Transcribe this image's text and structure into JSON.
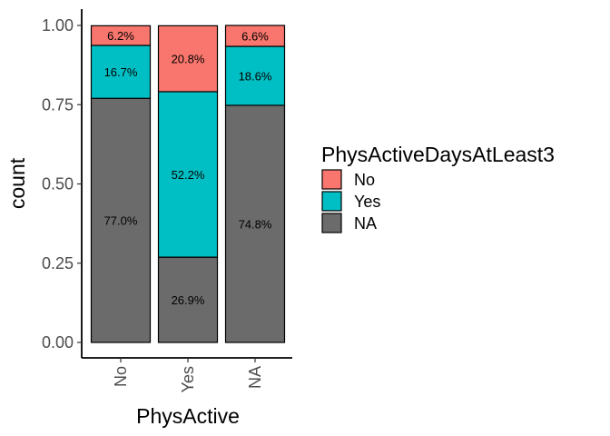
{
  "chart_data": {
    "type": "bar",
    "stacked": true,
    "categories": [
      "No",
      "Yes",
      "NA"
    ],
    "series": [
      {
        "name": "No",
        "color": "#F8766D",
        "values": [
          0.062,
          0.208,
          0.066
        ],
        "labels": [
          "6.2%",
          "20.8%",
          "6.6%"
        ]
      },
      {
        "name": "Yes",
        "color": "#00BFC4",
        "values": [
          0.167,
          0.522,
          0.186
        ],
        "labels": [
          "16.7%",
          "52.2%",
          "18.6%"
        ]
      },
      {
        "name": "NA",
        "color": "#6B6B6B",
        "values": [
          0.77,
          0.269,
          0.748
        ],
        "labels": [
          "77.0%",
          "26.9%",
          "74.8%"
        ]
      }
    ],
    "stack_order_top_to_bottom": [
      "No",
      "Yes",
      "NA"
    ],
    "xlabel": "PhysActive",
    "ylabel": "count",
    "ylim": [
      0,
      1
    ],
    "yticks": [
      0.0,
      0.25,
      0.5,
      0.75,
      1.0
    ],
    "ytick_labels": [
      "0.00",
      "0.25",
      "0.50",
      "0.75",
      "1.00"
    ],
    "legend": {
      "title": "PhysActiveDaysAtLeast3",
      "placement": "right",
      "entries": [
        "No",
        "Yes",
        "NA"
      ]
    },
    "grid": false
  }
}
